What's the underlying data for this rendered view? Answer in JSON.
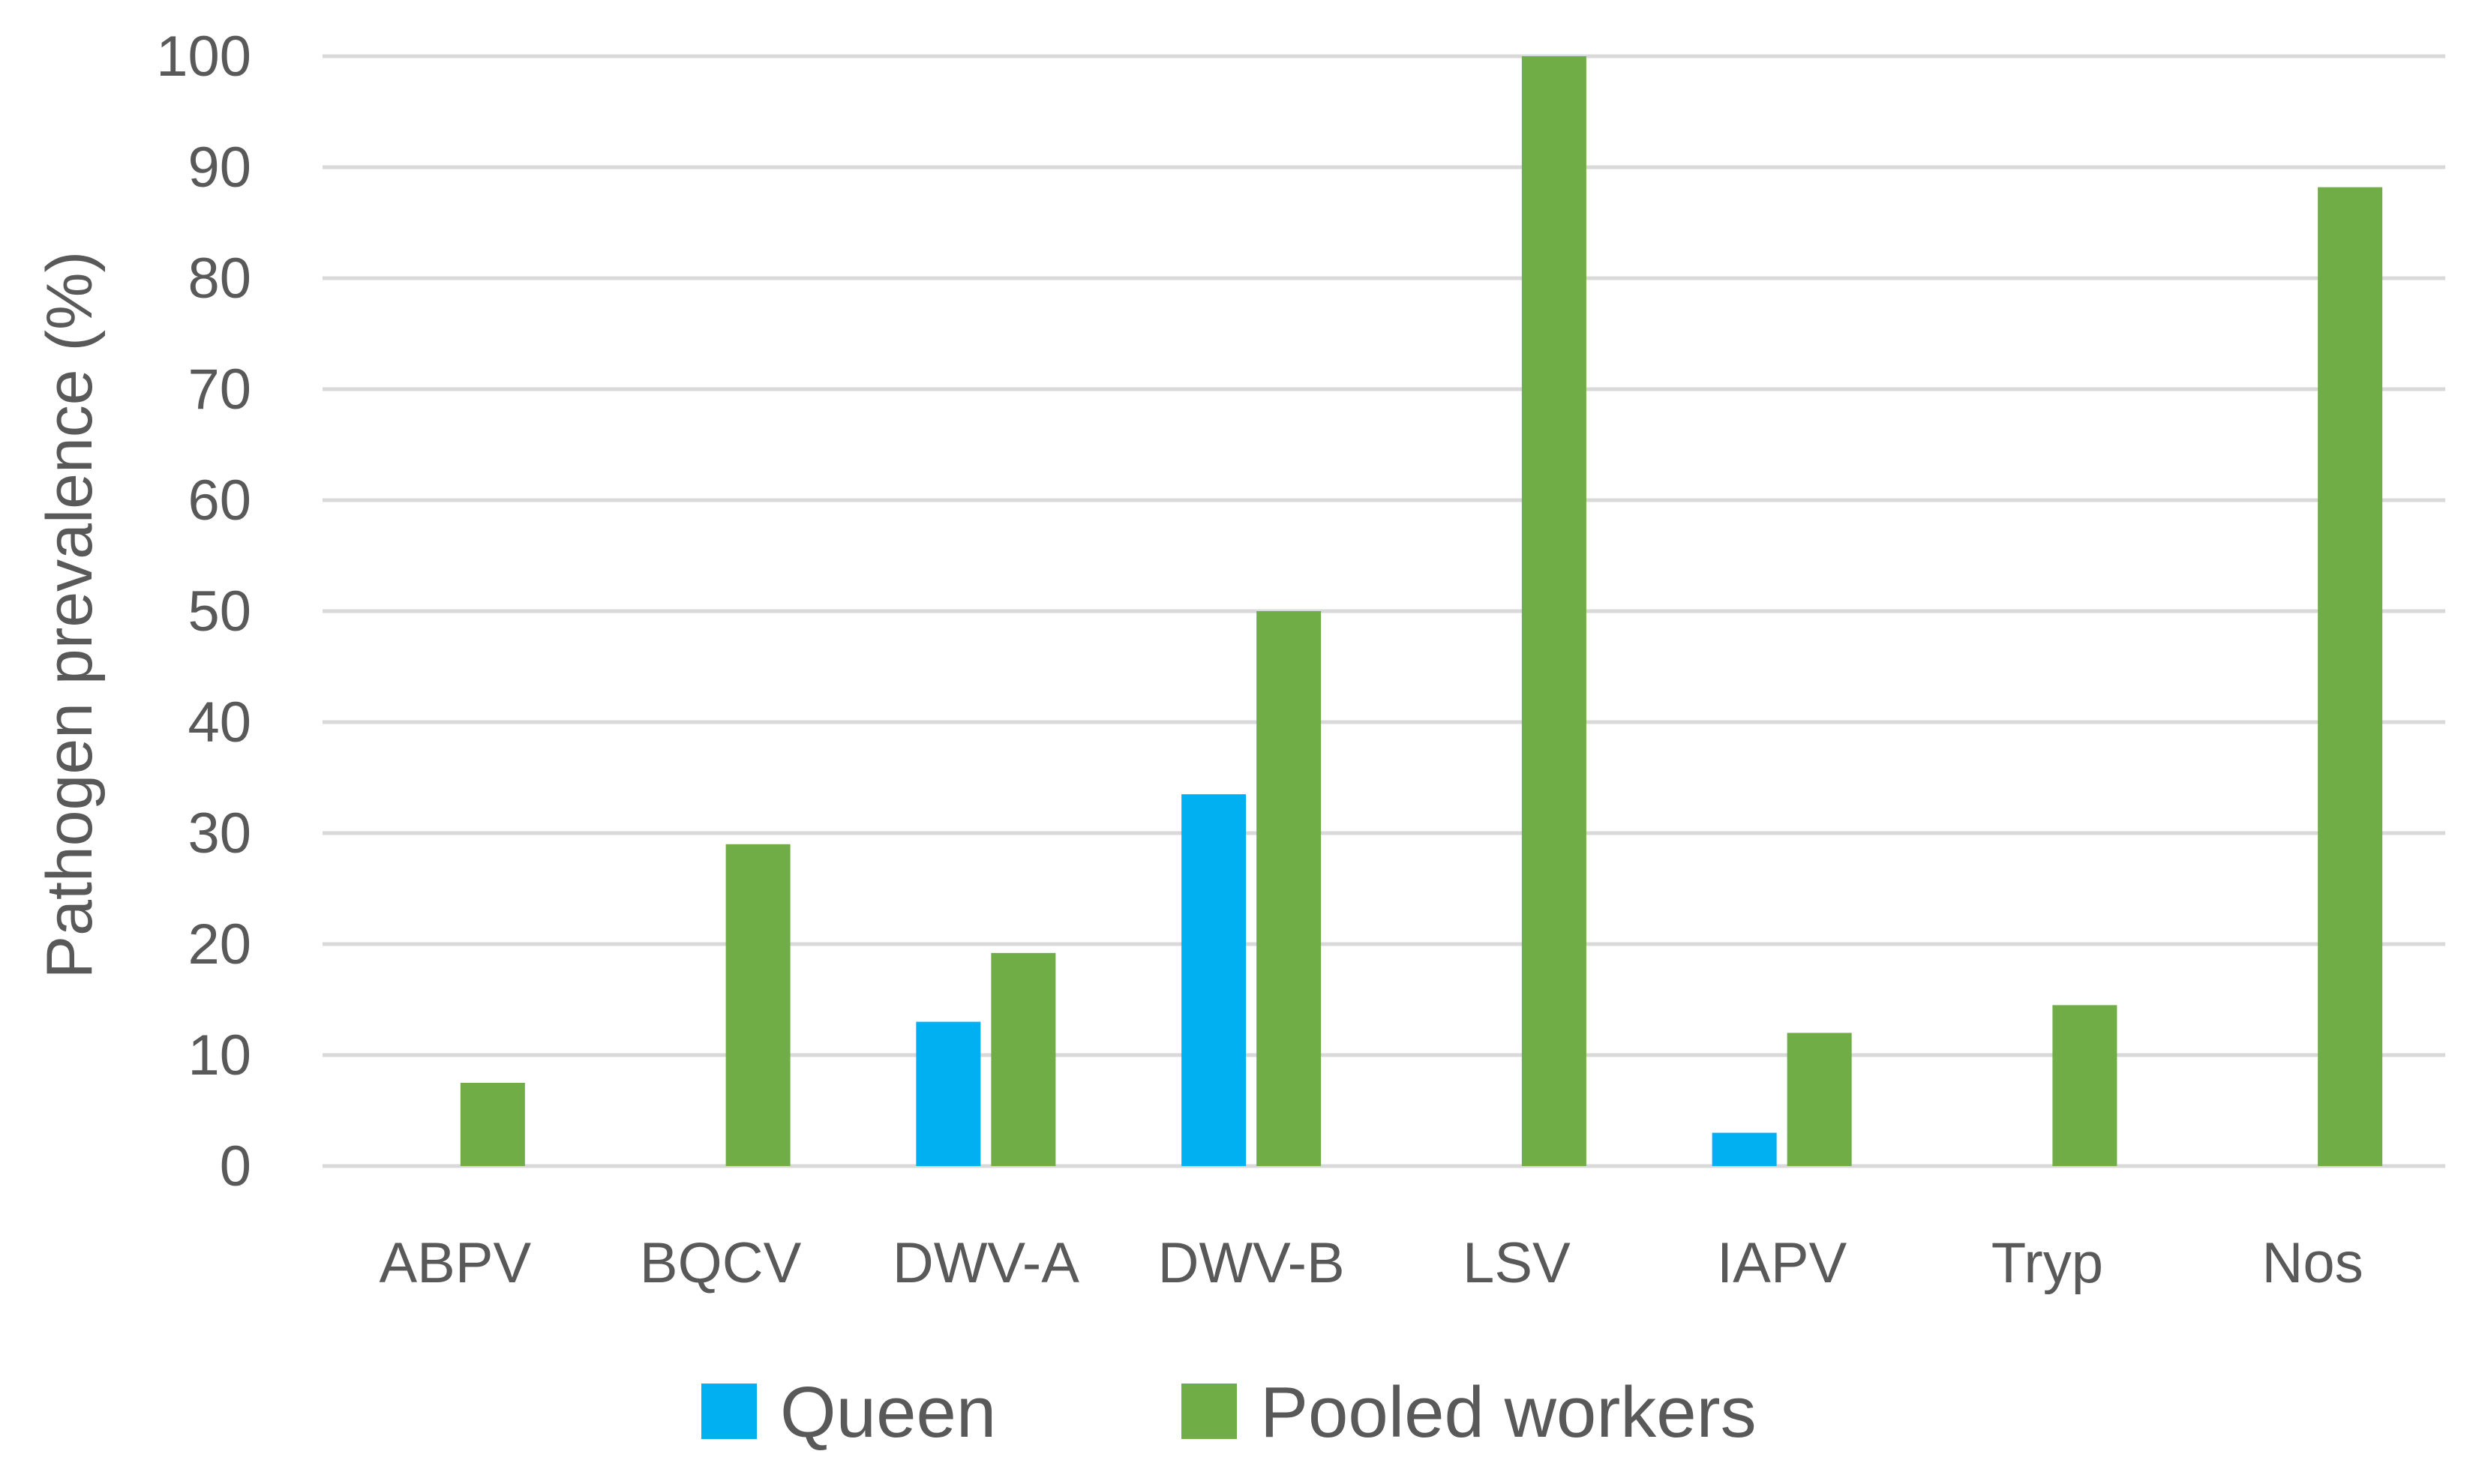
{
  "chart_data": {
    "type": "bar",
    "title": "",
    "xlabel": "",
    "ylabel": "Pathogen prevalence  (%)",
    "ylim": [
      0,
      100
    ],
    "yticks": [
      0,
      10,
      20,
      30,
      40,
      50,
      60,
      70,
      80,
      90,
      100
    ],
    "grid": true,
    "legend_position": "bottom",
    "categories": [
      "ABPV",
      "BQCV",
      "DWV-A",
      "DWV-B",
      "LSV",
      "IAPV",
      "Tryp",
      "Nos"
    ],
    "series": [
      {
        "name": "Queen",
        "color": "#00b0f0",
        "values": [
          0,
          0,
          13,
          33.5,
          0,
          3,
          0,
          0
        ]
      },
      {
        "name": "Pooled workers",
        "color": "#70ad47",
        "values": [
          7.5,
          29,
          19.2,
          50,
          100,
          12,
          14.5,
          88.2
        ]
      }
    ]
  }
}
